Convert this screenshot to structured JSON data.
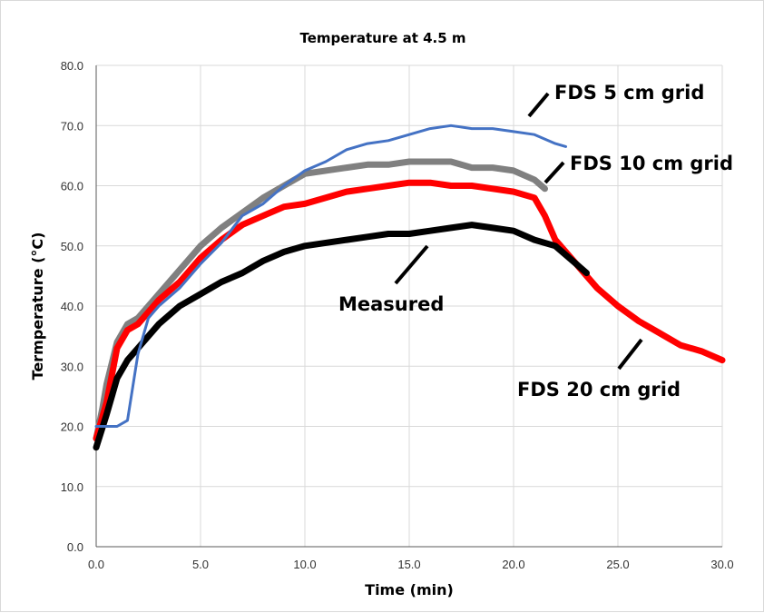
{
  "chart_data": {
    "type": "line",
    "title": "Temperature at 4.5 m",
    "xlabel": "Time (min)",
    "ylabel": "Termperature  (°C)",
    "xlim": [
      0,
      30
    ],
    "ylim": [
      0,
      80
    ],
    "xticks": [
      "0.0",
      "5.0",
      "10.0",
      "15.0",
      "20.0",
      "25.0",
      "30.0"
    ],
    "yticks": [
      "0.0",
      "10.0",
      "20.0",
      "30.0",
      "40.0",
      "50.0",
      "60.0",
      "70.0",
      "80.0"
    ],
    "grid": true,
    "legend": "none (inline annotations)",
    "series": [
      {
        "name": "FDS 5 cm grid",
        "color": "#4472C4",
        "style": "thin",
        "x": [
          0,
          1,
          1.5,
          2,
          2.5,
          3,
          4,
          5,
          6,
          7,
          8,
          9,
          10,
          11,
          12,
          13,
          14,
          15,
          16,
          17,
          18,
          19,
          20,
          21,
          22,
          22.5
        ],
        "y": [
          20,
          20,
          21,
          32,
          38,
          40,
          43,
          47,
          50.5,
          55,
          57,
          60,
          62.5,
          64,
          66,
          67,
          67.5,
          68.5,
          69.5,
          70,
          69.5,
          69.5,
          69,
          68.5,
          67,
          66.5
        ]
      },
      {
        "name": "FDS 10 cm grid",
        "color": "#808080",
        "style": "thick",
        "x": [
          0,
          0.3,
          0.5,
          1,
          1.5,
          2,
          3,
          4,
          5,
          6,
          7,
          8,
          9,
          10,
          11,
          12,
          13,
          14,
          15,
          16,
          17,
          18,
          19,
          20,
          21,
          21.5
        ],
        "y": [
          18,
          23,
          27,
          34,
          37,
          38,
          42,
          46,
          50,
          53,
          55.5,
          58,
          60,
          62,
          62.5,
          63,
          63.5,
          63.5,
          64,
          64,
          64,
          63,
          63,
          62.5,
          61,
          59.5
        ]
      },
      {
        "name": "FDS 20 cm grid",
        "color": "#FF0000",
        "style": "thick",
        "x": [
          0,
          0.5,
          1,
          1.5,
          2,
          3,
          4,
          5,
          6,
          7,
          8,
          9,
          10,
          11,
          12,
          13,
          14,
          15,
          16,
          17,
          18,
          19,
          20,
          21,
          21.5,
          22,
          23,
          24,
          25,
          26,
          27,
          28,
          29,
          30
        ],
        "y": [
          18,
          24,
          33,
          36,
          37,
          41,
          44,
          48,
          51,
          53.5,
          55,
          56.5,
          57,
          58,
          59,
          59.5,
          60,
          60.5,
          60.5,
          60,
          60,
          59.5,
          59,
          58,
          55,
          51,
          47,
          43,
          40,
          37.5,
          35.5,
          33.5,
          32.5,
          31
        ]
      },
      {
        "name": "Measured",
        "color": "#000000",
        "style": "thick",
        "x": [
          0,
          0.5,
          1,
          1.5,
          2,
          3,
          4,
          5,
          6,
          7,
          8,
          9,
          10,
          11,
          12,
          13,
          14,
          15,
          16,
          17,
          18,
          19,
          20,
          21,
          22,
          23,
          23.5
        ],
        "y": [
          16.5,
          22,
          28,
          31,
          33,
          37,
          40,
          42,
          44,
          45.5,
          47.5,
          49,
          50,
          50.5,
          51,
          51.5,
          52,
          52,
          52.5,
          53,
          53.5,
          53,
          52.5,
          51,
          50,
          47,
          45.5
        ]
      }
    ],
    "annotations": [
      {
        "text": "FDS 5 cm grid",
        "series": "FDS 5 cm grid"
      },
      {
        "text": "FDS 10 cm grid",
        "series": "FDS 10 cm grid"
      },
      {
        "text": "Measured",
        "series": "Measured"
      },
      {
        "text": "FDS 20 cm grid",
        "series": "FDS 20 cm grid"
      }
    ]
  }
}
